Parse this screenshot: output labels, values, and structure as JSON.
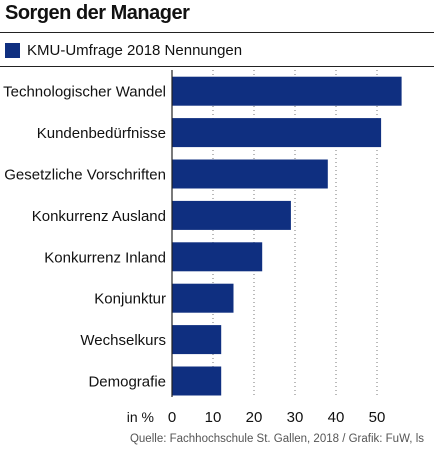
{
  "colors": {
    "bar": "#0f2f80",
    "grid": "#777777"
  },
  "chart_data": {
    "type": "bar",
    "orientation": "horizontal",
    "title": "Sorgen der Manager",
    "categories": [
      "Technologischer Wandel",
      "Kundenbedürfnisse",
      "Gesetzliche Vorschriften",
      "Konkurrenz Ausland",
      "Konkurrenz Inland",
      "Konjunktur",
      "Wechselkurs",
      "Demografie"
    ],
    "series": [
      {
        "name": "KMU-Umfrage 2018 Nennungen",
        "values": [
          56,
          51,
          38,
          29,
          22,
          15,
          12,
          12
        ]
      }
    ],
    "xlabel": "in %",
    "xlim": [
      0,
      56
    ],
    "xticks": [
      0,
      10,
      20,
      30,
      40,
      50
    ],
    "grid": "vertical-dotted",
    "legend": "top-left",
    "source": "Quelle: Fachhochschule St. Gallen, 2018 / Grafik: FuW, ls"
  }
}
